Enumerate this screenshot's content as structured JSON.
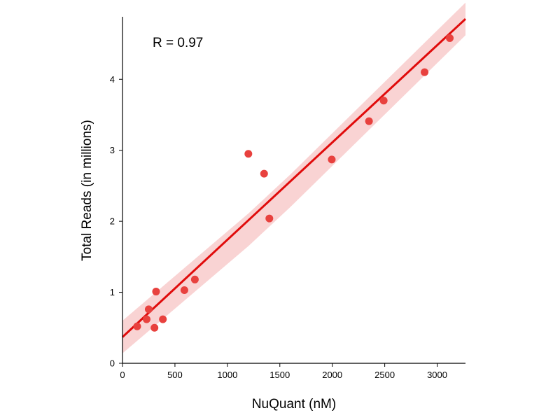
{
  "chart_data": {
    "type": "scatter",
    "title": "",
    "xlabel": "NuQuant (nM)",
    "ylabel": "Total Reads (in millions)",
    "annotation": "R = 0.97",
    "xlim": [
      0,
      3270
    ],
    "ylim": [
      0,
      4.88
    ],
    "xticks": [
      0,
      500,
      1000,
      1500,
      2000,
      2500,
      3000
    ],
    "yticks": [
      0,
      1,
      2,
      3,
      4
    ],
    "grid": false,
    "legend": "none",
    "colors": {
      "points": "#e8413e",
      "fit_line": "#e00b0b",
      "confidence_band": "#f9d3d3"
    },
    "points": [
      {
        "x": 140,
        "y": 0.52
      },
      {
        "x": 230,
        "y": 0.62
      },
      {
        "x": 250,
        "y": 0.76
      },
      {
        "x": 305,
        "y": 0.5
      },
      {
        "x": 320,
        "y": 1.01
      },
      {
        "x": 385,
        "y": 0.62
      },
      {
        "x": 590,
        "y": 1.03
      },
      {
        "x": 690,
        "y": 1.18
      },
      {
        "x": 1200,
        "y": 2.95
      },
      {
        "x": 1350,
        "y": 2.67
      },
      {
        "x": 1400,
        "y": 2.04
      },
      {
        "x": 1995,
        "y": 2.87
      },
      {
        "x": 2350,
        "y": 3.41
      },
      {
        "x": 2490,
        "y": 3.7
      },
      {
        "x": 2880,
        "y": 4.1
      },
      {
        "x": 3120,
        "y": 4.58
      }
    ],
    "fit_line": {
      "x": [
        0,
        3270
      ],
      "y": [
        0.37,
        4.85
      ]
    },
    "confidence_band": {
      "x": [
        0,
        1200,
        1600,
        3270
      ],
      "upper": [
        0.6,
        2.11,
        2.66,
        5.08
      ],
      "lower": [
        0.14,
        1.65,
        2.2,
        4.62
      ]
    }
  }
}
